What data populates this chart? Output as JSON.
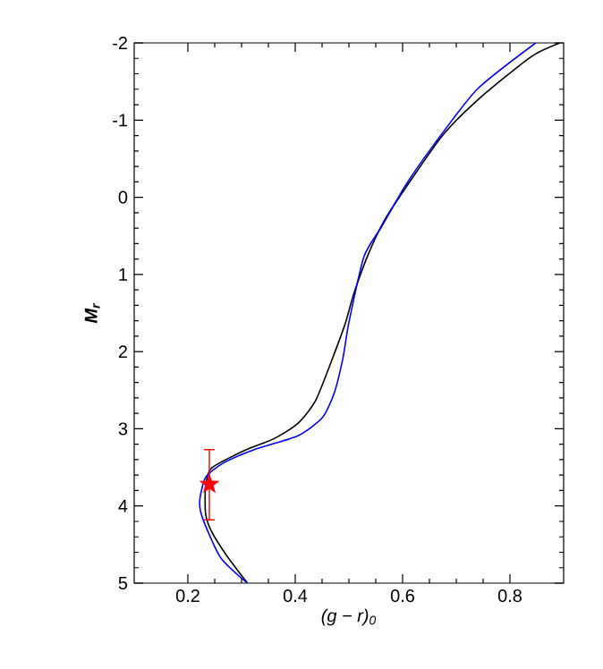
{
  "chart_data": {
    "type": "line",
    "xlabel": "(g − r)$_{0}$",
    "ylabel": "M$_{r}$",
    "xlim": [
      0.1,
      0.9
    ],
    "ylim": [
      5,
      -2
    ],
    "xticks": [
      0.2,
      0.4,
      0.6,
      0.8
    ],
    "yticks": [
      -2,
      -1,
      0,
      1,
      2,
      3,
      4,
      5
    ],
    "grid": false,
    "series": [
      {
        "color": "#000000",
        "x": [
          0.311,
          0.272,
          0.244,
          0.233,
          0.233,
          0.244,
          0.306,
          0.36,
          0.405,
          0.439,
          0.478,
          0.494,
          0.51,
          0.539,
          0.572,
          0.672,
          0.743,
          0.839,
          0.893
        ],
        "values": [
          5.0,
          4.64,
          4.33,
          4.1,
          3.75,
          3.51,
          3.28,
          3.13,
          2.93,
          2.62,
          1.93,
          1.62,
          1.23,
          0.69,
          0.23,
          -0.78,
          -1.28,
          -1.82,
          -2.0
        ]
      },
      {
        "color": "#0000ff",
        "x": [
          0.311,
          0.261,
          0.228,
          0.222,
          0.233,
          0.267,
          0.328,
          0.405,
          0.45,
          0.472,
          0.489,
          0.5,
          0.528,
          0.561,
          0.606,
          0.656,
          0.739,
          0.848
        ],
        "values": [
          5.0,
          4.67,
          4.17,
          3.94,
          3.63,
          3.44,
          3.26,
          3.09,
          2.86,
          2.55,
          2.08,
          1.62,
          0.77,
          0.38,
          -0.16,
          -0.66,
          -1.4,
          -2.0
        ]
      },
      {
        "type": "scatter",
        "marker": "star",
        "color": "#ff0000",
        "x": [
          0.24
        ],
        "values": [
          3.72
        ],
        "errors": [
          [
            3.27,
            4.18
          ]
        ]
      }
    ]
  }
}
